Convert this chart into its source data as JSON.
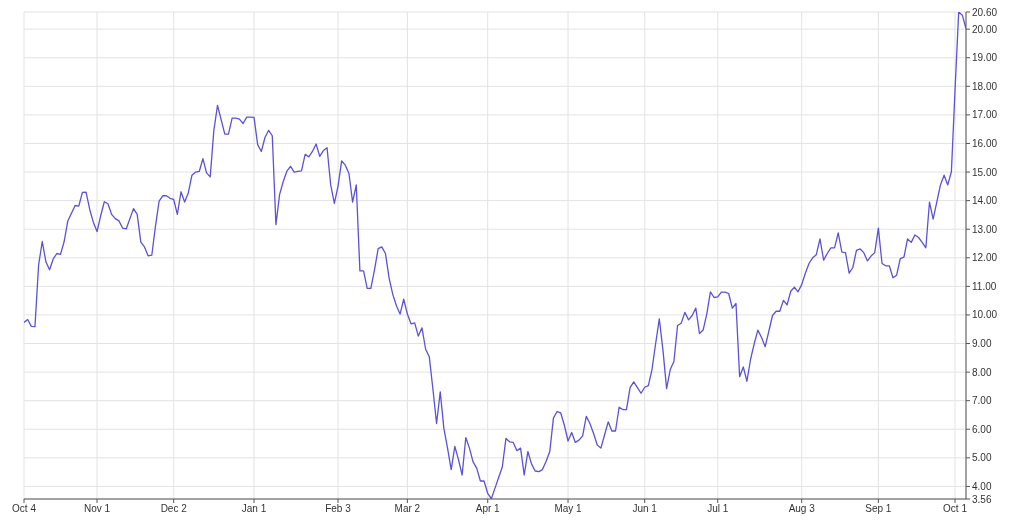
{
  "chart_data": {
    "type": "line",
    "color": "#5a52d8",
    "categories": [
      "Oct 4",
      null,
      null,
      null,
      null,
      null,
      null,
      null,
      null,
      null,
      null,
      null,
      null,
      null,
      null,
      null,
      null,
      null,
      null,
      null,
      "Nov 1",
      null,
      null,
      null,
      null,
      null,
      null,
      null,
      null,
      null,
      null,
      null,
      null,
      null,
      null,
      null,
      null,
      null,
      null,
      null,
      null,
      "Dec 2",
      null,
      null,
      null,
      null,
      null,
      null,
      null,
      null,
      null,
      null,
      null,
      null,
      null,
      null,
      null,
      null,
      null,
      null,
      null,
      null,
      null,
      "Jan 1",
      null,
      null,
      null,
      null,
      null,
      null,
      null,
      null,
      null,
      null,
      null,
      null,
      null,
      null,
      null,
      null,
      null,
      null,
      null,
      null,
      null,
      null,
      "Feb 3",
      null,
      null,
      null,
      null,
      null,
      null,
      null,
      null,
      null,
      null,
      null,
      null,
      null,
      null,
      null,
      null,
      null,
      null,
      "Mar 2",
      null,
      null,
      null,
      null,
      null,
      null,
      null,
      null,
      null,
      null,
      null,
      null,
      null,
      null,
      null,
      null,
      null,
      null,
      null,
      null,
      null,
      "Apr 1",
      null,
      null,
      null,
      null,
      null,
      null,
      null,
      null,
      null,
      null,
      null,
      null,
      null,
      null,
      null,
      null,
      null,
      null,
      null,
      null,
      null,
      "May 1",
      null,
      null,
      null,
      null,
      null,
      null,
      null,
      null,
      null,
      null,
      null,
      null,
      null,
      null,
      null,
      null,
      null,
      null,
      null,
      null,
      "Jun 1",
      null,
      null,
      null,
      null,
      null,
      null,
      null,
      null,
      null,
      null,
      null,
      null,
      null,
      null,
      null,
      null,
      null,
      null,
      null,
      "Jul 1",
      null,
      null,
      null,
      null,
      null,
      null,
      null,
      null,
      null,
      null,
      null,
      null,
      null,
      null,
      null,
      null,
      null,
      null,
      null,
      null,
      null,
      null,
      "Aug 3",
      null,
      null,
      null,
      null,
      null,
      null,
      null,
      null,
      null,
      null,
      null,
      null,
      null,
      null,
      null,
      null,
      null,
      null,
      null,
      null,
      "Sep 1",
      null,
      null,
      null,
      null,
      null,
      null,
      null,
      null,
      null,
      null,
      null,
      null,
      null,
      null,
      null,
      null,
      null,
      null,
      null,
      null,
      "Oct 1",
      null,
      null,
      null
    ],
    "values": [
      9.74,
      9.84,
      9.6,
      9.59,
      11.75,
      12.57,
      11.86,
      11.58,
      11.96,
      12.15,
      12.12,
      12.57,
      13.29,
      13.56,
      13.83,
      13.81,
      14.29,
      14.3,
      13.69,
      13.24,
      12.92,
      13.47,
      13.96,
      13.89,
      13.52,
      13.37,
      13.29,
      13.04,
      13.01,
      13.37,
      13.72,
      13.52,
      12.55,
      12.38,
      12.07,
      12.09,
      13.1,
      13.98,
      14.17,
      14.17,
      14.08,
      14.04,
      13.52,
      14.31,
      13.95,
      14.27,
      14.89,
      15.0,
      15.02,
      15.47,
      14.97,
      14.83,
      16.46,
      17.33,
      16.83,
      16.33,
      16.33,
      16.89,
      16.89,
      16.85,
      16.7,
      16.92,
      16.92,
      16.91,
      15.96,
      15.72,
      16.21,
      16.46,
      16.27,
      13.16,
      14.21,
      14.67,
      15.03,
      15.2,
      15.0,
      15.02,
      15.04,
      15.62,
      15.53,
      15.72,
      15.98,
      15.55,
      15.75,
      15.85,
      14.55,
      13.9,
      14.5,
      15.39,
      15.24,
      14.95,
      13.95,
      14.55,
      11.54,
      11.54,
      10.93,
      10.93,
      11.58,
      12.32,
      12.38,
      12.15,
      11.29,
      10.72,
      10.32,
      10.03,
      10.55,
      10.03,
      9.69,
      9.72,
      9.26,
      9.55,
      8.8,
      8.54,
      7.4,
      6.2,
      7.31,
      6.03,
      5.34,
      4.59,
      5.4,
      4.94,
      4.4,
      5.71,
      5.34,
      4.86,
      4.63,
      4.19,
      4.19,
      3.76,
      3.57,
      3.94,
      4.31,
      4.68,
      5.68,
      5.56,
      5.54,
      5.25,
      5.34,
      4.4,
      5.22,
      4.79,
      4.54,
      4.52,
      4.59,
      4.88,
      5.22,
      6.39,
      6.62,
      6.57,
      6.14,
      5.59,
      5.89,
      5.54,
      5.62,
      5.77,
      6.45,
      6.2,
      5.85,
      5.45,
      5.34,
      5.8,
      6.26,
      5.94,
      5.94,
      6.77,
      6.69,
      6.69,
      7.46,
      7.66,
      7.46,
      7.26,
      7.47,
      7.53,
      8.09,
      9.0,
      9.86,
      8.77,
      7.42,
      8.09,
      8.37,
      9.63,
      9.71,
      10.09,
      9.83,
      9.98,
      10.24,
      9.35,
      9.47,
      10.03,
      10.81,
      10.61,
      10.63,
      10.8,
      10.8,
      10.75,
      10.24,
      10.4,
      7.84,
      8.18,
      7.68,
      8.45,
      9.0,
      9.47,
      9.21,
      8.89,
      9.43,
      9.98,
      10.13,
      10.13,
      10.51,
      10.35,
      10.83,
      10.97,
      10.81,
      11.06,
      11.46,
      11.8,
      12.0,
      12.11,
      12.66,
      11.92,
      12.15,
      12.35,
      12.35,
      12.87,
      12.2,
      12.18,
      11.46,
      11.66,
      12.26,
      12.31,
      12.18,
      11.89,
      12.06,
      12.18,
      13.04,
      11.8,
      11.72,
      11.72,
      11.3,
      11.39,
      11.97,
      12.02,
      12.66,
      12.54,
      12.8,
      12.71,
      12.54,
      12.35,
      13.95,
      13.35,
      13.95,
      14.55,
      14.89,
      14.55,
      15.01,
      17.88,
      20.6,
      20.49,
      20.02
    ],
    "ylim": [
      3.56,
      20.6
    ],
    "yticks": [
      {
        "value": 3.56,
        "label": "3.56"
      },
      {
        "value": 4,
        "label": "4.00"
      },
      {
        "value": 5,
        "label": "5.00"
      },
      {
        "value": 6,
        "label": "6.00"
      },
      {
        "value": 7,
        "label": "7.00"
      },
      {
        "value": 8,
        "label": "8.00"
      },
      {
        "value": 9,
        "label": "9.00"
      },
      {
        "value": 10,
        "label": "10.00"
      },
      {
        "value": 11,
        "label": "11.00"
      },
      {
        "value": 12,
        "label": "12.00"
      },
      {
        "value": 13,
        "label": "13.00"
      },
      {
        "value": 14,
        "label": "14.00"
      },
      {
        "value": 15,
        "label": "15.00"
      },
      {
        "value": 16,
        "label": "16.00"
      },
      {
        "value": 17,
        "label": "17.00"
      },
      {
        "value": 18,
        "label": "18.00"
      },
      {
        "value": 19,
        "label": "19.00"
      },
      {
        "value": 20,
        "label": "20.00"
      },
      {
        "value": 20.6,
        "label": "20.60"
      }
    ],
    "grid": true
  }
}
